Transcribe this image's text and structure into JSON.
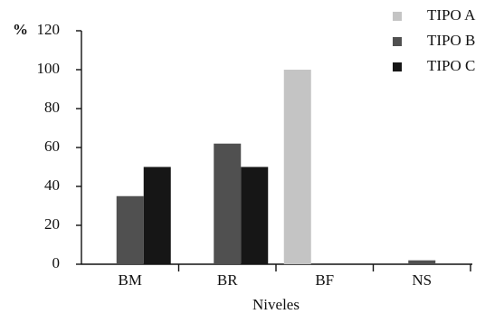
{
  "chart_data": {
    "type": "bar",
    "y_label": "%",
    "x_label": "Niveles",
    "categories": [
      "BM",
      "BR",
      "BF",
      "NS"
    ],
    "series": [
      {
        "name": "TIPO A",
        "color": "#c4c4c4",
        "values": [
          0,
          0,
          100,
          0
        ]
      },
      {
        "name": "TIPO B",
        "color": "#505050",
        "values": [
          35,
          62,
          0,
          2
        ]
      },
      {
        "name": "TIPO C",
        "color": "#161616",
        "values": [
          50,
          50,
          0,
          0
        ]
      }
    ],
    "ylim": [
      0,
      120
    ],
    "yticks": [
      0,
      20,
      40,
      60,
      80,
      100,
      120
    ],
    "legend": "top-right"
  }
}
